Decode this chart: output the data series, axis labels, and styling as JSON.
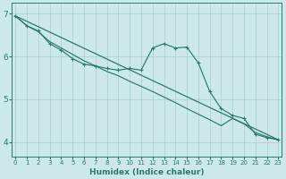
{
  "xlabel": "Humidex (Indice chaleur)",
  "bg_color": "#cce8e8",
  "line_color": "#2a7a72",
  "grid_color": "#aacfcf",
  "x_ticks": [
    0,
    1,
    2,
    3,
    4,
    5,
    6,
    7,
    8,
    9,
    10,
    11,
    12,
    13,
    14,
    15,
    16,
    17,
    18,
    19,
    20,
    21,
    22,
    23
  ],
  "y_ticks": [
    4,
    5,
    6,
    7
  ],
  "ylim": [
    3.65,
    7.25
  ],
  "xlim": [
    -0.3,
    23.3
  ],
  "trend_x": [
    0,
    23
  ],
  "trend_y": [
    6.95,
    4.05
  ],
  "curve1_x": [
    0,
    1,
    2,
    3,
    4,
    5,
    6,
    7,
    8,
    9,
    10,
    11,
    12,
    13,
    14,
    15,
    16,
    17,
    18,
    19,
    20,
    21,
    22,
    23
  ],
  "curve1_y": [
    6.95,
    6.72,
    6.6,
    6.3,
    6.15,
    5.95,
    5.82,
    5.78,
    5.72,
    5.68,
    5.72,
    5.68,
    6.2,
    6.3,
    6.2,
    6.22,
    5.85,
    5.18,
    4.78,
    4.62,
    4.55,
    4.18,
    4.1,
    4.05
  ],
  "curve2_x": [
    0,
    1,
    2,
    3,
    4,
    5,
    6,
    7,
    8,
    9,
    10,
    11,
    12,
    13,
    14,
    15,
    16,
    17,
    18,
    19,
    20,
    21,
    22,
    23
  ],
  "curve2_y": [
    6.95,
    6.72,
    6.58,
    6.35,
    6.2,
    6.05,
    5.9,
    5.78,
    5.65,
    5.55,
    5.42,
    5.3,
    5.18,
    5.05,
    4.92,
    4.78,
    4.65,
    4.52,
    4.38,
    4.55,
    4.42,
    4.22,
    4.12,
    4.05
  ]
}
